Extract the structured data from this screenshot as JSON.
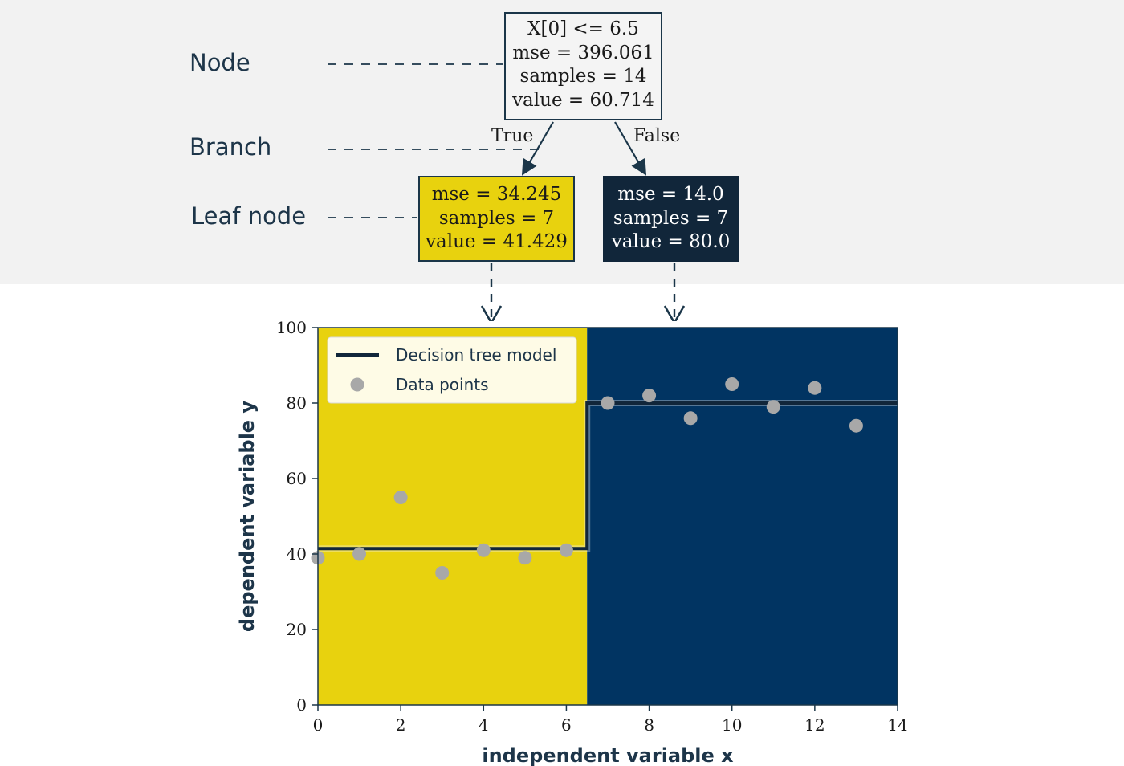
{
  "annotations": {
    "node_label": "Node",
    "branch_label": "Branch",
    "leaf_label": "Leaf node"
  },
  "tree": {
    "root": {
      "lines": [
        "X[0] <= 6.5",
        "mse = 396.061",
        "samples = 14",
        "value = 60.714"
      ]
    },
    "left_leaf": {
      "lines": [
        "mse = 34.245",
        "samples = 7",
        "value = 41.429"
      ],
      "color": "#e8d20e"
    },
    "right_leaf": {
      "lines": [
        "mse = 14.0",
        "samples = 7",
        "value = 80.0"
      ],
      "color": "#11263a"
    },
    "true_label": "True",
    "false_label": "False"
  },
  "colors": {
    "band": "#f2f2f2",
    "yellow_region": "#e8d20e",
    "blue_region": "#013462",
    "model_line": "#11263a",
    "points": "#a8a8a8",
    "text": "#1d3549"
  },
  "chart_data": {
    "type": "scatter",
    "xlabel": "independent variable x",
    "ylabel": "dependent variable y",
    "xlim": [
      0,
      14
    ],
    "ylim": [
      0,
      100
    ],
    "xticks": [
      0,
      2,
      4,
      6,
      8,
      10,
      12,
      14
    ],
    "yticks": [
      0,
      20,
      40,
      60,
      80,
      100
    ],
    "split": 6.5,
    "legend_position": "top-left",
    "series": [
      {
        "name": "Data points",
        "x": [
          0,
          1,
          2,
          3,
          4,
          5,
          6,
          7,
          8,
          9,
          10,
          11,
          12,
          13
        ],
        "y": [
          39,
          40,
          55,
          35,
          41,
          39,
          41,
          80,
          82,
          76,
          85,
          79,
          84,
          74
        ]
      },
      {
        "name": "Decision tree model",
        "segments": [
          {
            "x0": 0,
            "x1": 6.5,
            "y": 41.429
          },
          {
            "x0": 6.5,
            "x1": 14,
            "y": 80.0
          }
        ]
      }
    ]
  }
}
